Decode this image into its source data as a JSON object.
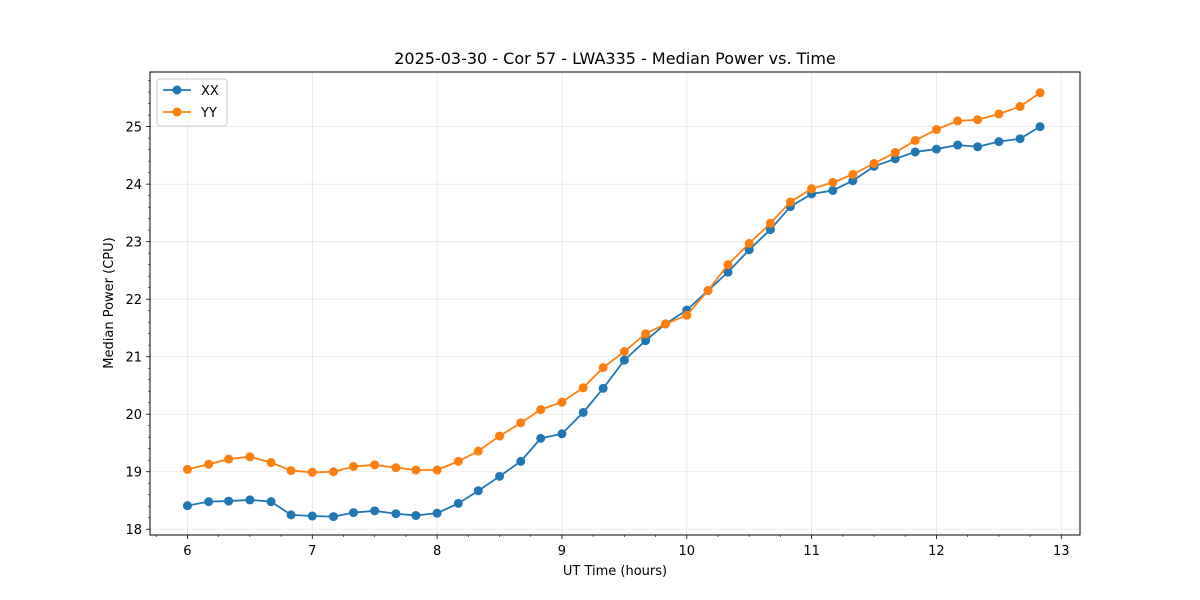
{
  "chart_data": {
    "type": "line",
    "title": "2025-03-30 - Cor 57 - LWA335 - Median Power vs. Time",
    "xlabel": "UT Time (hours)",
    "ylabel": "Median Power (CPU)",
    "xlim": [
      5.7,
      13.15
    ],
    "ylim": [
      17.9,
      25.95
    ],
    "xticks": [
      6,
      7,
      8,
      9,
      10,
      11,
      12,
      13
    ],
    "yticks": [
      18,
      19,
      20,
      21,
      22,
      23,
      24,
      25
    ],
    "grid": true,
    "legend_position": "top-left",
    "x": [
      6.0,
      6.17,
      6.33,
      6.5,
      6.67,
      6.83,
      7.0,
      7.17,
      7.33,
      7.5,
      7.67,
      7.83,
      8.0,
      8.17,
      8.33,
      8.5,
      8.67,
      8.83,
      9.0,
      9.17,
      9.33,
      9.5,
      9.67,
      9.83,
      10.0,
      10.17,
      10.33,
      10.5,
      10.67,
      10.83,
      11.0,
      11.17,
      11.33,
      11.5,
      11.67,
      11.83,
      12.0,
      12.17,
      12.33,
      12.5,
      12.67,
      12.83
    ],
    "series": [
      {
        "name": "XX",
        "color": "#1f77b4",
        "values": [
          18.41,
          18.48,
          18.49,
          18.51,
          18.48,
          18.25,
          18.23,
          18.22,
          18.29,
          18.32,
          18.27,
          18.24,
          18.28,
          18.45,
          18.67,
          18.92,
          19.18,
          19.58,
          19.66,
          20.03,
          20.45,
          20.94,
          21.28,
          21.57,
          21.81,
          22.15,
          22.47,
          22.86,
          23.21,
          23.61,
          23.83,
          23.89,
          24.06,
          24.31,
          24.44,
          24.56,
          24.61,
          24.68,
          24.65,
          24.74,
          24.79,
          25.0
        ]
      },
      {
        "name": "YY",
        "color": "#ff7f0e",
        "values": [
          19.04,
          19.13,
          19.22,
          19.26,
          19.16,
          19.02,
          18.99,
          19.0,
          19.09,
          19.12,
          19.07,
          19.03,
          19.03,
          19.18,
          19.36,
          19.62,
          19.85,
          20.08,
          20.21,
          20.46,
          20.81,
          21.09,
          21.4,
          21.57,
          21.72,
          22.15,
          22.6,
          22.97,
          23.32,
          23.69,
          23.92,
          24.03,
          24.17,
          24.36,
          24.55,
          24.76,
          24.95,
          25.1,
          25.12,
          25.22,
          25.35,
          25.59
        ]
      }
    ]
  }
}
